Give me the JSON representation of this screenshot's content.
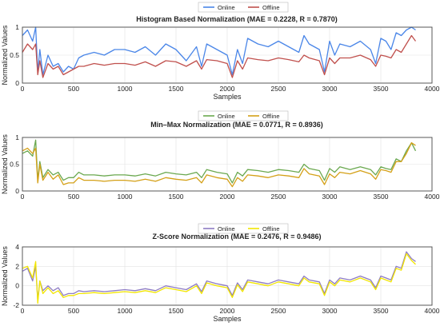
{
  "figure": {
    "colors": {
      "online_blue": "#4a86e8",
      "offline_red": "#c0504d",
      "online_green": "#6aa84f",
      "offline_orange": "#d4a017",
      "online_purple": "#8e7cc3",
      "offline_yellow": "#f2e600",
      "grid": "#e3e3e3",
      "axis": "#444444"
    }
  },
  "chart_data": [
    {
      "type": "line",
      "title": "Histogram Based Normalization (MAE = 0.2228, R = 0.7870)",
      "xlabel": "Samples",
      "ylabel": "Normalized Values",
      "xlim": [
        0,
        4000
      ],
      "ylim": [
        0,
        1
      ],
      "xticks": [
        "0",
        "500",
        "1000",
        "1500",
        "2000",
        "2500",
        "3000",
        "3500",
        "4000"
      ],
      "yticks": [
        "0",
        "0.5",
        "1"
      ],
      "grid": true,
      "legend_position": "top-center",
      "x": [
        0,
        50,
        100,
        130,
        150,
        170,
        200,
        250,
        300,
        350,
        400,
        450,
        500,
        550,
        600,
        700,
        800,
        900,
        1000,
        1100,
        1200,
        1300,
        1400,
        1500,
        1600,
        1700,
        1750,
        1800,
        1900,
        2000,
        2050,
        2100,
        2150,
        2200,
        2300,
        2400,
        2500,
        2600,
        2700,
        2750,
        2800,
        2900,
        2950,
        3000,
        3050,
        3100,
        3200,
        3300,
        3400,
        3450,
        3500,
        3550,
        3600,
        3650,
        3700,
        3750,
        3800,
        3840
      ],
      "series": [
        {
          "name": "Online",
          "color": "#4a86e8",
          "values": [
            0.85,
            0.95,
            0.75,
            1.0,
            0.2,
            0.6,
            0.15,
            0.5,
            0.3,
            0.35,
            0.2,
            0.3,
            0.25,
            0.45,
            0.5,
            0.55,
            0.5,
            0.6,
            0.6,
            0.55,
            0.65,
            0.5,
            0.7,
            0.6,
            0.4,
            0.65,
            0.3,
            0.7,
            0.6,
            0.5,
            0.15,
            0.6,
            0.35,
            0.8,
            0.7,
            0.65,
            0.75,
            0.65,
            0.55,
            0.85,
            0.7,
            0.6,
            0.2,
            0.75,
            0.5,
            0.7,
            0.65,
            0.75,
            0.6,
            0.35,
            0.8,
            0.75,
            0.6,
            0.9,
            0.85,
            0.95,
            1.0,
            0.95
          ]
        },
        {
          "name": "Offline",
          "color": "#c0504d",
          "values": [
            0.55,
            0.7,
            0.6,
            0.7,
            0.15,
            0.4,
            0.1,
            0.35,
            0.25,
            0.3,
            0.15,
            0.2,
            0.25,
            0.3,
            0.3,
            0.35,
            0.32,
            0.35,
            0.35,
            0.32,
            0.38,
            0.3,
            0.4,
            0.38,
            0.3,
            0.4,
            0.25,
            0.42,
            0.4,
            0.35,
            0.1,
            0.4,
            0.25,
            0.45,
            0.42,
            0.4,
            0.45,
            0.42,
            0.38,
            0.5,
            0.45,
            0.4,
            0.15,
            0.45,
            0.35,
            0.45,
            0.45,
            0.5,
            0.42,
            0.3,
            0.5,
            0.48,
            0.45,
            0.6,
            0.55,
            0.7,
            0.85,
            0.75
          ]
        }
      ]
    },
    {
      "type": "line",
      "title": "Min–Max Normalization (MAE = 0.0771, R = 0.8936)",
      "xlabel": "",
      "ylabel": "Normalized Values",
      "xlim": [
        0,
        4000
      ],
      "ylim": [
        0,
        1
      ],
      "xticks": [
        "0",
        "500",
        "1000",
        "1500",
        "2000",
        "2500",
        "3000",
        "3500",
        "4000"
      ],
      "yticks": [
        "0",
        "0.5",
        "1"
      ],
      "grid": true,
      "legend_position": "top-center",
      "x": [
        0,
        50,
        100,
        130,
        150,
        170,
        200,
        250,
        300,
        350,
        400,
        450,
        500,
        550,
        600,
        700,
        800,
        900,
        1000,
        1100,
        1200,
        1300,
        1400,
        1500,
        1600,
        1700,
        1750,
        1800,
        1900,
        2000,
        2050,
        2100,
        2150,
        2200,
        2300,
        2400,
        2500,
        2600,
        2700,
        2750,
        2800,
        2900,
        2950,
        3000,
        3050,
        3100,
        3200,
        3300,
        3400,
        3450,
        3500,
        3550,
        3600,
        3650,
        3700,
        3750,
        3800,
        3840
      ],
      "series": [
        {
          "name": "Online",
          "color": "#6aa84f",
          "values": [
            0.7,
            0.75,
            0.65,
            0.95,
            0.2,
            0.55,
            0.25,
            0.4,
            0.3,
            0.35,
            0.2,
            0.25,
            0.25,
            0.35,
            0.3,
            0.3,
            0.28,
            0.3,
            0.3,
            0.28,
            0.32,
            0.28,
            0.35,
            0.32,
            0.3,
            0.35,
            0.25,
            0.4,
            0.35,
            0.32,
            0.15,
            0.35,
            0.28,
            0.4,
            0.38,
            0.35,
            0.4,
            0.38,
            0.35,
            0.5,
            0.42,
            0.38,
            0.2,
            0.42,
            0.35,
            0.45,
            0.4,
            0.45,
            0.4,
            0.3,
            0.45,
            0.42,
            0.4,
            0.6,
            0.55,
            0.75,
            0.9,
            0.75
          ]
        },
        {
          "name": "Offline",
          "color": "#d4a017",
          "values": [
            0.75,
            0.8,
            0.7,
            0.8,
            0.15,
            0.5,
            0.2,
            0.35,
            0.22,
            0.3,
            0.12,
            0.15,
            0.15,
            0.25,
            0.2,
            0.2,
            0.18,
            0.2,
            0.2,
            0.18,
            0.22,
            0.18,
            0.25,
            0.22,
            0.2,
            0.25,
            0.15,
            0.3,
            0.25,
            0.22,
            0.08,
            0.25,
            0.18,
            0.3,
            0.28,
            0.25,
            0.3,
            0.28,
            0.25,
            0.42,
            0.32,
            0.28,
            0.12,
            0.32,
            0.25,
            0.35,
            0.32,
            0.38,
            0.32,
            0.22,
            0.4,
            0.38,
            0.35,
            0.55,
            0.55,
            0.7,
            0.9,
            0.85
          ]
        }
      ]
    },
    {
      "type": "line",
      "title": "Z-Score Normalization (MAE = 0.2476, R = 0.9486)",
      "xlabel": "Samples",
      "ylabel": "Normalized Values",
      "xlim": [
        0,
        4000
      ],
      "ylim": [
        -2,
        4
      ],
      "xticks": [
        "0",
        "500",
        "1000",
        "1500",
        "2000",
        "2500",
        "3000",
        "3500",
        "4000"
      ],
      "yticks": [
        "-2",
        "0",
        "2",
        "4"
      ],
      "grid": true,
      "legend_position": "top-center",
      "x": [
        0,
        50,
        100,
        130,
        150,
        170,
        200,
        250,
        300,
        350,
        400,
        450,
        500,
        550,
        600,
        700,
        800,
        900,
        1000,
        1100,
        1200,
        1300,
        1400,
        1500,
        1600,
        1700,
        1750,
        1800,
        1900,
        2000,
        2050,
        2100,
        2150,
        2200,
        2300,
        2400,
        2500,
        2600,
        2700,
        2750,
        2800,
        2900,
        2950,
        3000,
        3050,
        3100,
        3200,
        3300,
        3400,
        3450,
        3500,
        3550,
        3600,
        3650,
        3700,
        3750,
        3800,
        3840
      ],
      "series": [
        {
          "name": "Online",
          "color": "#8e7cc3",
          "values": [
            1.5,
            1.8,
            0.5,
            2.0,
            -1.5,
            0.5,
            -0.5,
            0.0,
            -0.5,
            -0.2,
            -1.0,
            -0.8,
            -0.8,
            -0.5,
            -0.6,
            -0.5,
            -0.6,
            -0.5,
            -0.4,
            -0.5,
            -0.3,
            -0.5,
            0.0,
            -0.2,
            -0.4,
            0.2,
            -0.6,
            0.5,
            0.2,
            0.0,
            -1.0,
            0.3,
            -0.4,
            0.6,
            0.4,
            0.2,
            0.6,
            0.4,
            0.2,
            1.0,
            0.6,
            0.4,
            -0.8,
            0.6,
            0.2,
            0.8,
            0.6,
            1.0,
            0.6,
            -0.2,
            1.0,
            0.8,
            0.6,
            2.0,
            1.8,
            3.5,
            2.8,
            2.5
          ]
        },
        {
          "name": "Offline",
          "color": "#f2e600",
          "values": [
            1.8,
            2.0,
            0.8,
            2.5,
            -1.8,
            0.5,
            -0.8,
            -0.2,
            -0.8,
            -0.5,
            -1.2,
            -1.0,
            -1.0,
            -0.8,
            -0.8,
            -0.7,
            -0.8,
            -0.7,
            -0.6,
            -0.7,
            -0.5,
            -0.7,
            -0.2,
            -0.4,
            -0.6,
            0.0,
            -0.8,
            0.3,
            0.0,
            -0.2,
            -1.2,
            0.1,
            -0.6,
            0.4,
            0.2,
            0.0,
            0.4,
            0.2,
            0.0,
            0.8,
            0.4,
            0.2,
            -1.0,
            0.4,
            0.0,
            0.6,
            0.4,
            0.8,
            0.4,
            -0.4,
            0.8,
            0.6,
            0.4,
            1.8,
            1.6,
            3.3,
            2.6,
            2.2
          ]
        }
      ]
    }
  ]
}
